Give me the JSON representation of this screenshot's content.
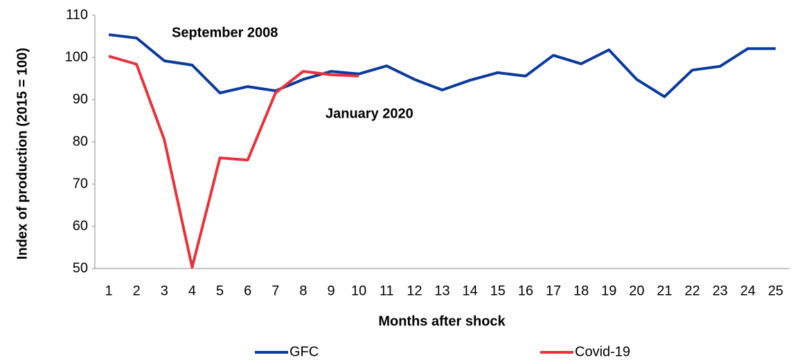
{
  "chart_data": {
    "type": "line",
    "annotations": [
      "September 2008",
      "January 2020"
    ],
    "xlabel": "Months after shock",
    "ylabel": "Index of production (2015 = 100)",
    "categories": [
      "1",
      "2",
      "3",
      "4",
      "5",
      "6",
      "7",
      "8",
      "9",
      "10",
      "11",
      "12",
      "13",
      "14",
      "15",
      "16",
      "17",
      "18",
      "19",
      "20",
      "21",
      "22",
      "23",
      "24",
      "25"
    ],
    "series": [
      {
        "name": "GFC",
        "color": "#0a3a9e",
        "values": [
          105.4,
          104.6,
          99.2,
          98.2,
          91.6,
          93.1,
          92.1,
          94.8,
          96.7,
          96.1,
          98.0,
          94.8,
          92.3,
          94.6,
          96.4,
          95.6,
          100.5,
          98.5,
          101.8,
          94.8,
          90.7,
          97.0,
          97.9,
          102.1,
          102.1
        ]
      },
      {
        "name": "Covid-19",
        "color": "#e8323c",
        "values": [
          100.3,
          98.4,
          80.5,
          50.3,
          76.2,
          75.7,
          91.6,
          96.7,
          95.9,
          95.6,
          null,
          null,
          null,
          null,
          null,
          null,
          null,
          null,
          null,
          null,
          null,
          null,
          null,
          null,
          null
        ]
      }
    ],
    "ylim": [
      50,
      110
    ],
    "yticks": [
      50,
      60,
      70,
      80,
      90,
      100,
      110
    ],
    "grid": false,
    "legend": "bottom"
  }
}
